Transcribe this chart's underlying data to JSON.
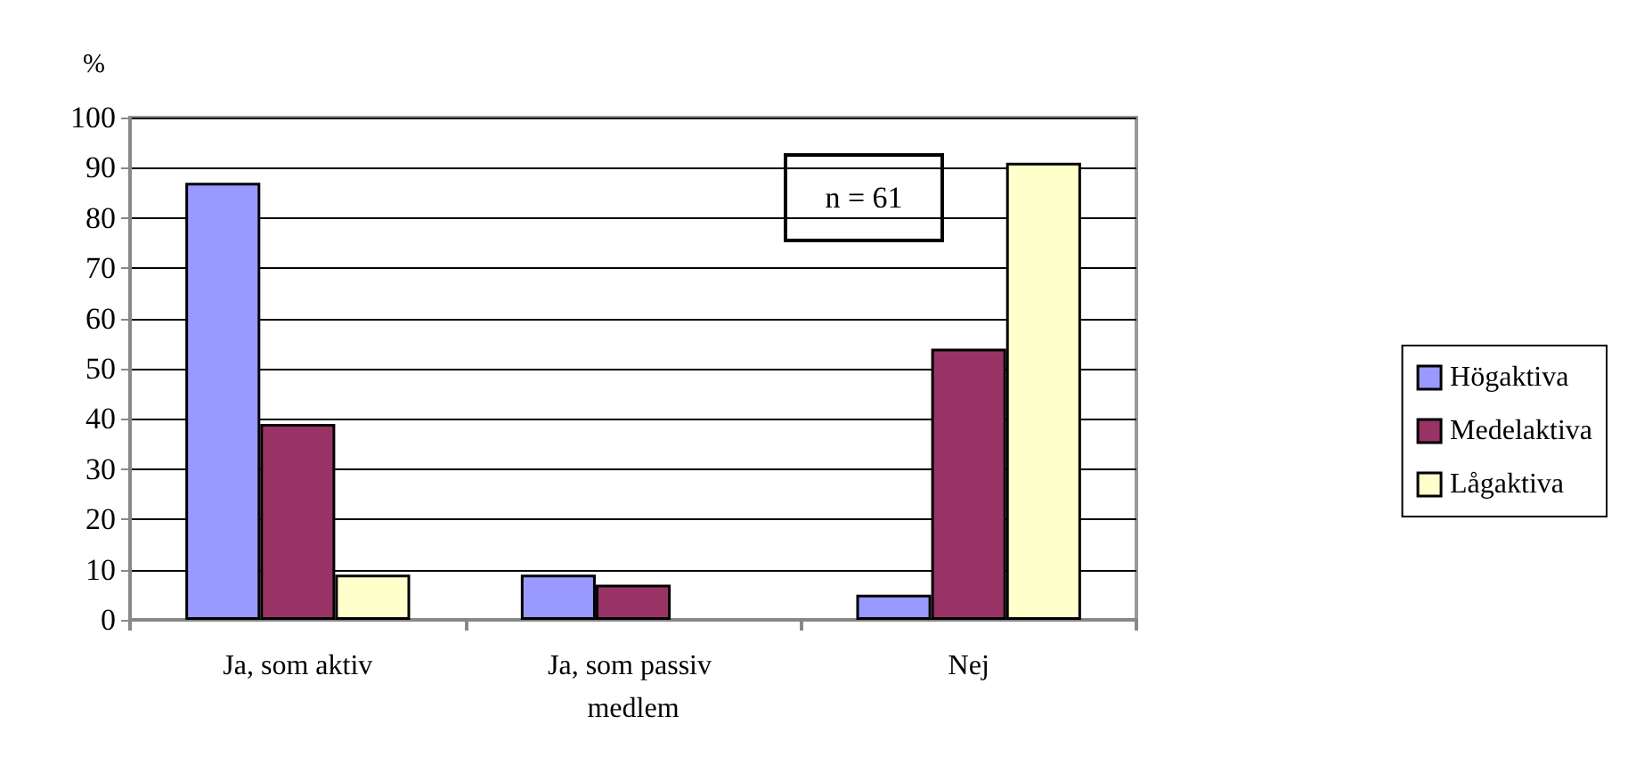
{
  "chart_data": {
    "type": "bar",
    "ylabel": "%",
    "categories": [
      "Ja, som aktiv",
      "Ja, som passiv medlem",
      "Nej"
    ],
    "series": [
      {
        "name": "Högaktiva",
        "color": "#9999ff",
        "values": [
          87,
          9,
          5
        ]
      },
      {
        "name": "Medelaktiva",
        "color": "#993366",
        "values": [
          39,
          7,
          54
        ]
      },
      {
        "name": "Lågaktiva",
        "color": "#ffffcc",
        "values": [
          9,
          0,
          91
        ]
      }
    ],
    "ylim": [
      0,
      100
    ],
    "yticks": [
      0,
      10,
      20,
      30,
      40,
      50,
      60,
      70,
      80,
      90,
      100
    ],
    "grid": "y",
    "legend": "right",
    "annotations": [
      "n = 61"
    ]
  }
}
